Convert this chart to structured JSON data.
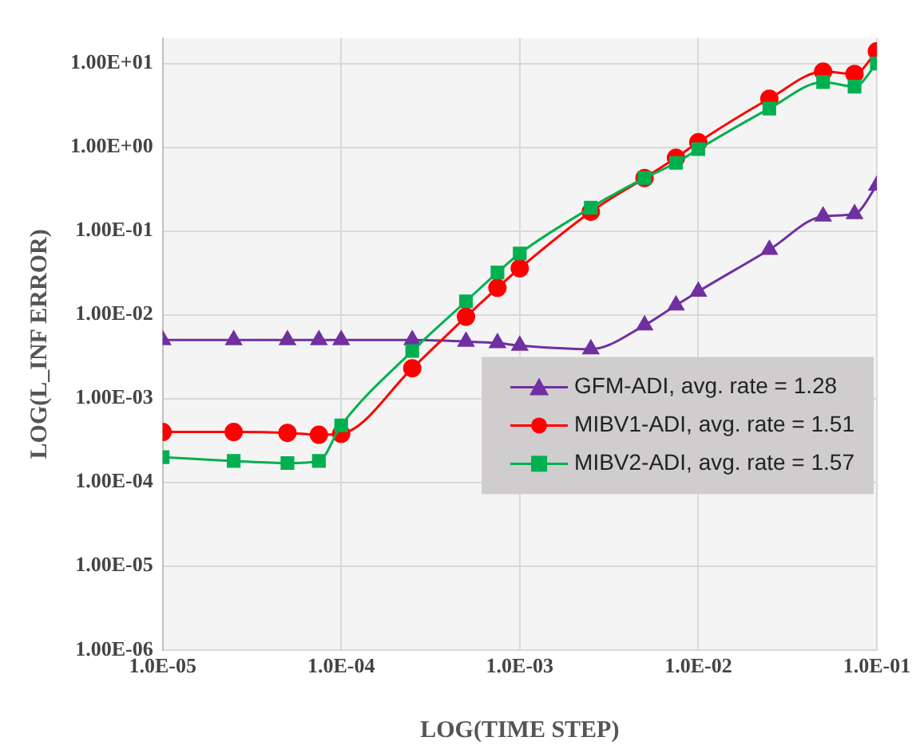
{
  "chart_data": {
    "type": "line",
    "xlabel": "LOG(TIME STEP)",
    "ylabel": "LOG(L_INF ERROR)",
    "log": "xy",
    "grid": true,
    "legend": "right",
    "line_style": "solid",
    "xlim": [
      1e-05,
      0.1
    ],
    "ylim": [
      1e-06,
      20
    ],
    "xticks": [
      {
        "value": 1e-05,
        "label": "1.0E-05"
      },
      {
        "value": 0.0001,
        "label": "1.0E-04"
      },
      {
        "value": 0.001,
        "label": "1.0E-03"
      },
      {
        "value": 0.01,
        "label": "1.0E-02"
      },
      {
        "value": 0.1,
        "label": "1.0E-01"
      }
    ],
    "yticks": [
      {
        "value": 1e-06,
        "label": "1.00E-06"
      },
      {
        "value": 1e-05,
        "label": "1.00E-05"
      },
      {
        "value": 0.0001,
        "label": "1.00E-04"
      },
      {
        "value": 0.001,
        "label": "1.00E-03"
      },
      {
        "value": 0.01,
        "label": "1.00E-02"
      },
      {
        "value": 0.1,
        "label": "1.00E-01"
      },
      {
        "value": 1,
        "label": "1.00E+00"
      },
      {
        "value": 10,
        "label": "1.00E+01"
      }
    ],
    "x": [
      1e-05,
      2.5e-05,
      5e-05,
      7.5e-05,
      0.0001,
      0.00025,
      0.0005,
      0.00075,
      0.001,
      0.0025,
      0.005,
      0.0075,
      0.01,
      0.025,
      0.05,
      0.075,
      0.1
    ],
    "series": [
      {
        "name": "GFM-ADI, avg. rate = 1.28",
        "color": "#7030a0",
        "marker": "triangle",
        "values": [
          0.005,
          0.005,
          0.005,
          0.005,
          0.005,
          0.005,
          0.0048,
          0.0046,
          0.0043,
          0.0039,
          0.0075,
          0.013,
          0.019,
          0.06,
          0.15,
          0.16,
          0.35
        ]
      },
      {
        "name": "MIBV1-ADI, avg. rate = 1.51",
        "color": "#ff0000",
        "marker": "circle",
        "values": [
          0.0004,
          0.0004,
          0.00039,
          0.00037,
          0.00038,
          0.0023,
          0.0095,
          0.021,
          0.036,
          0.17,
          0.43,
          0.75,
          1.15,
          3.8,
          8,
          7.5,
          14
        ]
      },
      {
        "name": "MIBV2-ADI, avg. rate = 1.57",
        "color": "#00b050",
        "marker": "square",
        "values": [
          0.0002,
          0.00018,
          0.00017,
          0.00018,
          0.00048,
          0.0037,
          0.0145,
          0.032,
          0.054,
          0.19,
          0.43,
          0.65,
          0.95,
          2.9,
          6,
          5.3,
          10
        ]
      }
    ]
  }
}
